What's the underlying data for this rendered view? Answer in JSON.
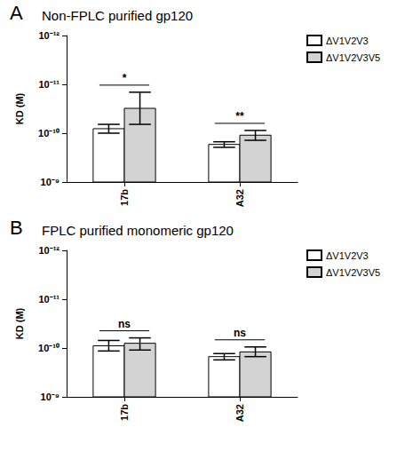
{
  "chart_data": [
    {
      "type": "bar",
      "panel_label": "A",
      "title": "Non-FPLC purified gp120",
      "y_label": "KD (M)",
      "log": "y",
      "grid": false,
      "legend": "top-right",
      "categories": [
        "17b",
        "A32"
      ],
      "series": [
        {
          "name": "ΔV1V2V3",
          "color": "#ffffff",
          "values": [
            8.1e-11,
            1.7e-10
          ],
          "error_low": [
            6.6e-11,
            1.5e-10
          ],
          "error_high": [
            1e-10,
            1.95e-10
          ]
        },
        {
          "name": "ΔV1V2V3V5",
          "color": "#d3d3d3",
          "values": [
            3.1e-11,
            1.1e-10
          ],
          "error_low": [
            1.45e-11,
            8.8e-11
          ],
          "error_high": [
            6.6e-11,
            1.4e-10
          ]
        }
      ],
      "ylim": [
        1e-12,
        1e-09
      ],
      "yticks": [
        {
          "value": 1e-12,
          "label": "10⁻¹²"
        },
        {
          "value": 1e-11,
          "label": "10⁻¹¹"
        },
        {
          "value": 1e-10,
          "label": "10⁻¹⁰"
        },
        {
          "value": 1e-09,
          "label": "10⁻⁹"
        }
      ],
      "annotations": [
        {
          "category": "17b",
          "text": "*"
        },
        {
          "category": "A32",
          "text": "**"
        }
      ]
    },
    {
      "type": "bar",
      "panel_label": "B",
      "title": "FPLC purified monomeric gp120",
      "y_label": "KD (M)",
      "log": "y",
      "grid": false,
      "legend": "top-right",
      "categories": [
        "17b",
        "A32"
      ],
      "series": [
        {
          "name": "ΔV1V2V3",
          "color": "#ffffff",
          "values": [
            9e-11,
            1.5e-10
          ],
          "error_low": [
            7e-11,
            1.3e-10
          ],
          "error_high": [
            1.15e-10,
            1.75e-10
          ]
        },
        {
          "name": "ΔV1V2V3V5",
          "color": "#d3d3d3",
          "values": [
            8e-11,
            1.2e-10
          ],
          "error_low": [
            6.2e-11,
            9.5e-11
          ],
          "error_high": [
            1.1e-10,
            1.5e-10
          ]
        }
      ],
      "ylim": [
        1e-12,
        1e-09
      ],
      "yticks": [
        {
          "value": 1e-12,
          "label": "10⁻¹²"
        },
        {
          "value": 1e-11,
          "label": "10⁻¹¹"
        },
        {
          "value": 1e-10,
          "label": "10⁻¹⁰"
        },
        {
          "value": 1e-09,
          "label": "10⁻⁹"
        }
      ],
      "annotations": [
        {
          "category": "17b",
          "text": "ns"
        },
        {
          "category": "A32",
          "text": "ns"
        }
      ]
    }
  ]
}
